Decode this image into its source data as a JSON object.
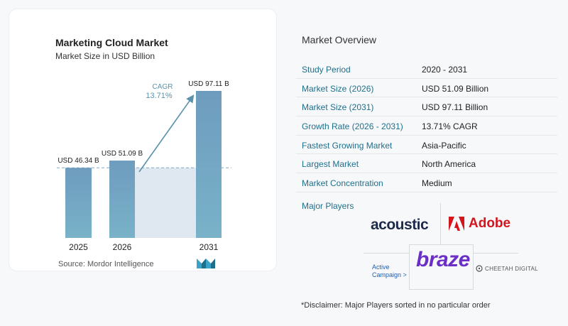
{
  "chart_data": {
    "type": "bar",
    "title": "Marketing Cloud Market",
    "subtitle": "Market Size in USD Billion",
    "categories": [
      "2025",
      "2026",
      "2031"
    ],
    "values": [
      46.34,
      51.09,
      97.11
    ],
    "value_labels": [
      "USD 46.34 B",
      "USD 51.09 B",
      "USD 97.11 B"
    ],
    "ylim": [
      0,
      97.11
    ],
    "grid": false,
    "cagr_label": "CAGR",
    "cagr_value": "13.71%",
    "colors": {
      "bar_top": "#6e9cbe",
      "bar_bottom": "#79b2c9",
      "shade": "#dfe8f1",
      "arrow": "#5b93ad",
      "baseline_dash": "#7fa9c3"
    }
  },
  "source": "Source:  Mordor Intelligence",
  "overview": {
    "title": "Market Overview",
    "rows": [
      {
        "label": "Study Period",
        "value": "2020 - 2031"
      },
      {
        "label": "Market Size (2026)",
        "value": "USD 51.09 Billion"
      },
      {
        "label": "Market Size (2031)",
        "value": "USD 97.11 Billion"
      },
      {
        "label": "Growth Rate (2026 - 2031)",
        "value": "13.71% CAGR"
      },
      {
        "label": "Fastest Growing Market",
        "value": "Asia-Pacific"
      },
      {
        "label": "Largest Market",
        "value": "North America"
      },
      {
        "label": "Market Concentration",
        "value": "Medium"
      }
    ]
  },
  "players": {
    "title": "Major Players",
    "logos": {
      "acoustic": "acoustic",
      "adobe": "Adobe",
      "braze": "braze",
      "active_campaign_line1": "Active",
      "active_campaign_line2": "Campaign >",
      "cheetah": "CHEETAH DIGITAL"
    }
  },
  "disclaimer": "*Disclaimer: Major Players sorted in no particular order"
}
